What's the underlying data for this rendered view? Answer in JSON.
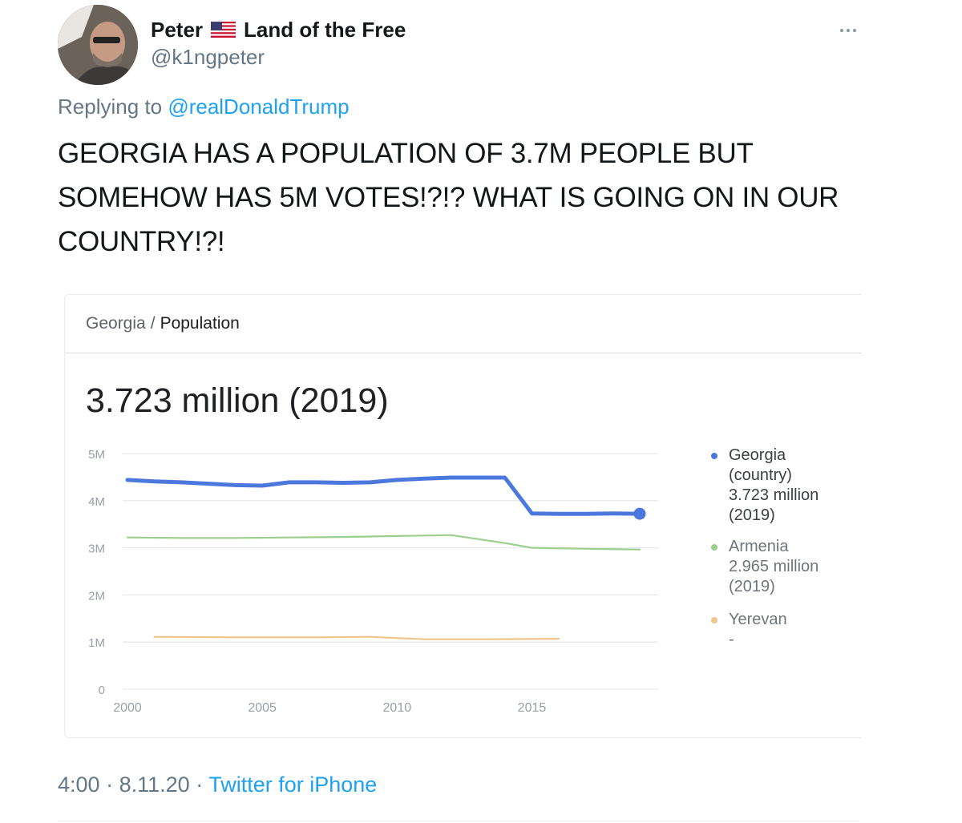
{
  "tweet": {
    "display_name": "Peter",
    "display_name_suffix": "Land of the Free",
    "handle": "@k1ngpeter",
    "reply_prefix": "Replying to",
    "reply_mention": "@realDonaldTrump",
    "text": "GEORGIA HAS A POPULATION OF 3.7M PEOPLE BUT SOMEHOW HAS 5M VOTES!?!? WHAT IS GOING ON IN OUR COUNTRY!?!",
    "time": "4:00",
    "date": "8.11.20",
    "separator": "·",
    "source": "Twitter for iPhone"
  },
  "card": {
    "breadcrumb_place": "Georgia",
    "breadcrumb_sep": "/",
    "breadcrumb_topic": "Population",
    "headline": "3.723 million (2019)"
  },
  "chart_data": {
    "type": "line",
    "y_ticks": [
      "0",
      "1M",
      "2M",
      "3M",
      "4M",
      "5M"
    ],
    "x_ticks": [
      "2000",
      "2005",
      "2010",
      "2015"
    ],
    "ylim": [
      0,
      5000000
    ],
    "xlim": [
      2000,
      2019
    ],
    "series": [
      {
        "name": "Georgia (country)",
        "color": "#4c78dd",
        "points": [
          [
            2000,
            4.44
          ],
          [
            2001,
            4.41
          ],
          [
            2002,
            4.39
          ],
          [
            2003,
            4.36
          ],
          [
            2004,
            4.33
          ],
          [
            2005,
            4.32
          ],
          [
            2006,
            4.39
          ],
          [
            2007,
            4.39
          ],
          [
            2008,
            4.38
          ],
          [
            2009,
            4.39
          ],
          [
            2010,
            4.44
          ],
          [
            2011,
            4.47
          ],
          [
            2012,
            4.49
          ],
          [
            2013,
            4.49
          ],
          [
            2014,
            4.49
          ],
          [
            2015,
            3.73
          ],
          [
            2016,
            3.72
          ],
          [
            2017,
            3.72
          ],
          [
            2018,
            3.73
          ],
          [
            2019,
            3.723
          ]
        ],
        "legend_lines": [
          "Georgia",
          "(country)",
          "3.723 million",
          "(2019)"
        ]
      },
      {
        "name": "Armenia",
        "color": "#9ccf8c",
        "points": [
          [
            2000,
            3.22
          ],
          [
            2002,
            3.21
          ],
          [
            2004,
            3.21
          ],
          [
            2006,
            3.22
          ],
          [
            2008,
            3.23
          ],
          [
            2010,
            3.25
          ],
          [
            2012,
            3.27
          ],
          [
            2014,
            3.1
          ],
          [
            2015,
            3.0
          ],
          [
            2017,
            2.98
          ],
          [
            2019,
            2.965
          ]
        ],
        "legend_lines": [
          "Armenia",
          "2.965 million",
          "(2019)"
        ]
      },
      {
        "name": "Yerevan",
        "color": "#f0c48a",
        "points": [
          [
            2001,
            1.11
          ],
          [
            2004,
            1.1
          ],
          [
            2007,
            1.1
          ],
          [
            2009,
            1.11
          ],
          [
            2011,
            1.06
          ],
          [
            2013,
            1.06
          ],
          [
            2016,
            1.07
          ]
        ],
        "legend_lines": [
          "Yerevan",
          "-"
        ]
      }
    ]
  }
}
